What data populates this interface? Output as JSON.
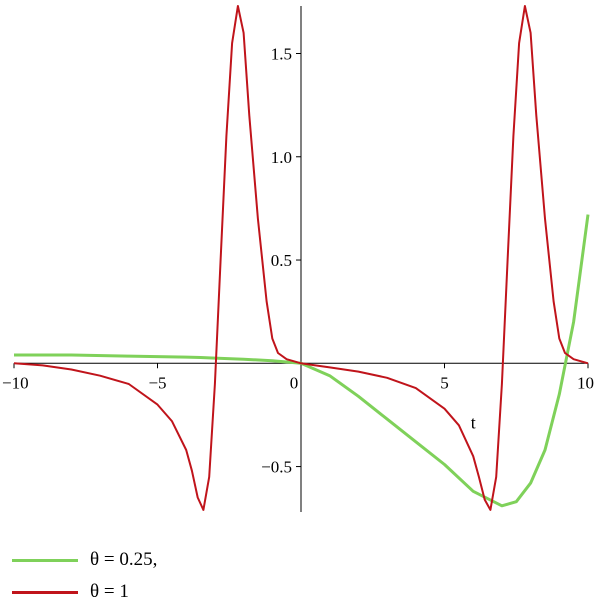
{
  "chart_data": {
    "type": "line",
    "xlabel": "t",
    "ylabel": "",
    "xlim": [
      -10,
      10
    ],
    "ylim": [
      -0.72,
      1.73
    ],
    "grid": false,
    "legend_position": "bottom-left",
    "x_ticks": [
      {
        "value": -10,
        "label": "−10"
      },
      {
        "value": -5,
        "label": "−5"
      },
      {
        "value": 0,
        "label": "0"
      },
      {
        "value": 5,
        "label": "5"
      },
      {
        "value": 10,
        "label": "10"
      }
    ],
    "y_ticks": [
      {
        "value": -0.5,
        "label": "−0.5"
      },
      {
        "value": 0.5,
        "label": "0.5"
      },
      {
        "value": 1.0,
        "label": "1.0"
      },
      {
        "value": 1.5,
        "label": "1.5"
      }
    ],
    "series": [
      {
        "name": "θ = 0.25,",
        "color": "#7fd15a",
        "x": [
          -10,
          -8,
          -6,
          -4,
          -3.5,
          -3,
          -2,
          -1,
          0,
          1,
          2,
          3,
          4,
          5,
          6,
          7,
          7.5,
          8,
          8.5,
          9,
          9.5,
          10
        ],
        "y": [
          0.04,
          0.04,
          0.035,
          0.03,
          0.028,
          0.025,
          0.02,
          0.012,
          0.0,
          -0.06,
          -0.16,
          -0.27,
          -0.38,
          -0.49,
          -0.62,
          -0.69,
          -0.67,
          -0.58,
          -0.42,
          -0.15,
          0.2,
          0.72
        ]
      },
      {
        "name": "θ = 1",
        "color": "#c0141b",
        "x": [
          -10,
          -9,
          -8,
          -7,
          -6,
          -5,
          -4.5,
          -4,
          -3.8,
          -3.6,
          -3.4,
          -3.2,
          -3.0,
          -2.8,
          -2.6,
          -2.4,
          -2.2,
          -2.0,
          -1.8,
          -1.5,
          -1.2,
          -1.0,
          -0.8,
          -0.5,
          0,
          0.5,
          1,
          2,
          3,
          4,
          5,
          5.5,
          6,
          6.2,
          6.4,
          6.6,
          6.8,
          7.0,
          7.2,
          7.4,
          7.6,
          7.8,
          8.0,
          8.2,
          8.5,
          8.8,
          9.0,
          9.2,
          9.5,
          10
        ],
        "y": [
          0.0,
          -0.01,
          -0.03,
          -0.06,
          -0.1,
          -0.2,
          -0.28,
          -0.42,
          -0.52,
          -0.65,
          -0.71,
          -0.55,
          -0.1,
          0.5,
          1.1,
          1.55,
          1.73,
          1.6,
          1.2,
          0.7,
          0.3,
          0.12,
          0.05,
          0.02,
          0.0,
          -0.01,
          -0.02,
          -0.04,
          -0.07,
          -0.12,
          -0.22,
          -0.3,
          -0.45,
          -0.55,
          -0.66,
          -0.71,
          -0.55,
          -0.1,
          0.5,
          1.1,
          1.55,
          1.73,
          1.6,
          1.2,
          0.7,
          0.3,
          0.12,
          0.05,
          0.02,
          0.0
        ]
      }
    ]
  }
}
